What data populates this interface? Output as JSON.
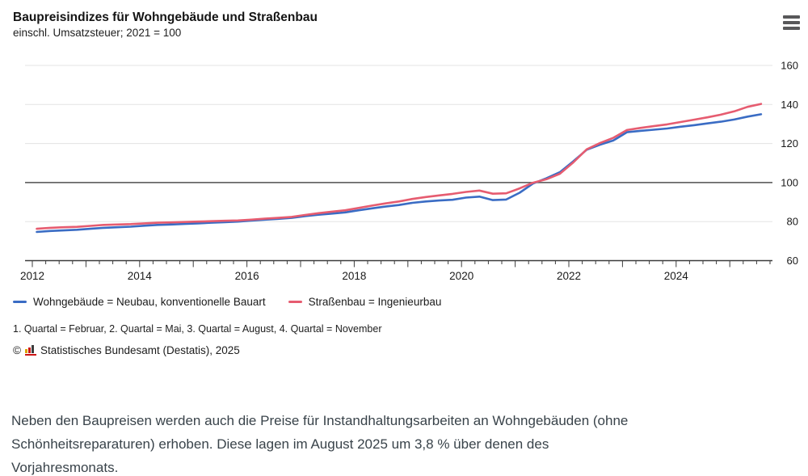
{
  "header": {
    "title": "Baupreisindizes für Wohngebäude und Straßenbau",
    "subtitle": "einschl. Umsatzsteuer; 2021 = 100",
    "menu_icon": "hamburger-menu-icon"
  },
  "chart_data": {
    "type": "line",
    "title": "Baupreisindizes für Wohngebäude und Straßenbau",
    "subtitle": "einschl. Umsatzsteuer; 2021 = 100",
    "frequency": "quarterly",
    "categories": [
      "2012-Q1",
      "2012-Q2",
      "2012-Q3",
      "2012-Q4",
      "2013-Q1",
      "2013-Q2",
      "2013-Q3",
      "2013-Q4",
      "2014-Q1",
      "2014-Q2",
      "2014-Q3",
      "2014-Q4",
      "2015-Q1",
      "2015-Q2",
      "2015-Q3",
      "2015-Q4",
      "2016-Q1",
      "2016-Q2",
      "2016-Q3",
      "2016-Q4",
      "2017-Q1",
      "2017-Q2",
      "2017-Q3",
      "2017-Q4",
      "2018-Q1",
      "2018-Q2",
      "2018-Q3",
      "2018-Q4",
      "2019-Q1",
      "2019-Q2",
      "2019-Q3",
      "2019-Q4",
      "2020-Q1",
      "2020-Q2",
      "2020-Q3",
      "2020-Q4",
      "2021-Q1",
      "2021-Q2",
      "2021-Q3",
      "2021-Q4",
      "2022-Q1",
      "2022-Q2",
      "2022-Q3",
      "2022-Q4",
      "2023-Q1",
      "2023-Q2",
      "2023-Q3",
      "2023-Q4",
      "2024-Q1",
      "2024-Q2",
      "2024-Q3",
      "2024-Q4",
      "2025-Q1",
      "2025-Q2",
      "2025-Q3"
    ],
    "series": [
      {
        "name": "Wohngebäude = Neubau, konventionelle Bauart",
        "color": "#3a6cc4",
        "values": [
          74.7,
          75.2,
          75.5,
          75.8,
          76.3,
          76.8,
          77.1,
          77.4,
          77.9,
          78.3,
          78.5,
          78.8,
          79.1,
          79.4,
          79.7,
          80.0,
          80.5,
          81.0,
          81.4,
          81.9,
          82.8,
          83.5,
          84.1,
          84.7,
          85.8,
          86.8,
          87.7,
          88.5,
          89.6,
          90.3,
          90.8,
          91.2,
          92.3,
          92.8,
          91.0,
          91.3,
          94.8,
          99.5,
          102.2,
          105.3,
          110.9,
          116.8,
          119.4,
          121.6,
          125.8,
          126.5,
          127.1,
          127.7,
          128.6,
          129.4,
          130.3,
          131.2,
          132.3,
          133.8,
          135.0
        ]
      },
      {
        "name": "Straßenbau = Ingenieurbau",
        "color": "#e65c70",
        "values": [
          76.3,
          76.8,
          77.1,
          77.3,
          77.8,
          78.3,
          78.5,
          78.7,
          79.1,
          79.4,
          79.6,
          79.8,
          80.0,
          80.2,
          80.4,
          80.6,
          81.0,
          81.5,
          81.9,
          82.4,
          83.4,
          84.3,
          85.1,
          85.8,
          87.0,
          88.2,
          89.3,
          90.3,
          91.6,
          92.6,
          93.4,
          94.2,
          95.2,
          95.9,
          94.3,
          94.5,
          97.0,
          99.9,
          101.7,
          104.5,
          110.3,
          117.0,
          120.3,
          123.0,
          126.9,
          128.0,
          128.9,
          129.8,
          131.0,
          132.2,
          133.4,
          134.8,
          136.5,
          138.8,
          140.3
        ]
      }
    ],
    "yticks": [
      60,
      80,
      100,
      120,
      140,
      160
    ],
    "ylim": [
      60,
      160
    ],
    "baseline_value": 100,
    "xticks_labeled": [
      2012,
      2014,
      2016,
      2018,
      2020,
      2022,
      2024
    ],
    "x_range": [
      2012.0,
      2025.83
    ],
    "grid": "horizontal",
    "legend_position": "bottom",
    "ytick_side": "right"
  },
  "footnote": "1. Quartal = Februar, 2. Quartal = Mai, 3. Quartal = August, 4. Quartal = November",
  "copyright": {
    "prefix": "©",
    "text": "Statistisches Bundesamt (Destatis), 2025",
    "logo_bar_colors": [
      "#dba400",
      "#cc1414",
      "#3c3c3c"
    ],
    "logo_base_color": "#cc1414"
  },
  "paragraph": "Neben den Baupreisen werden auch die Preise für Instandhaltungsarbeiten an Wohngebäuden (ohne Schönheitsreparaturen) erhoben. Diese lagen im August 2025 um 3,8 % über denen des Vorjahresmonats."
}
